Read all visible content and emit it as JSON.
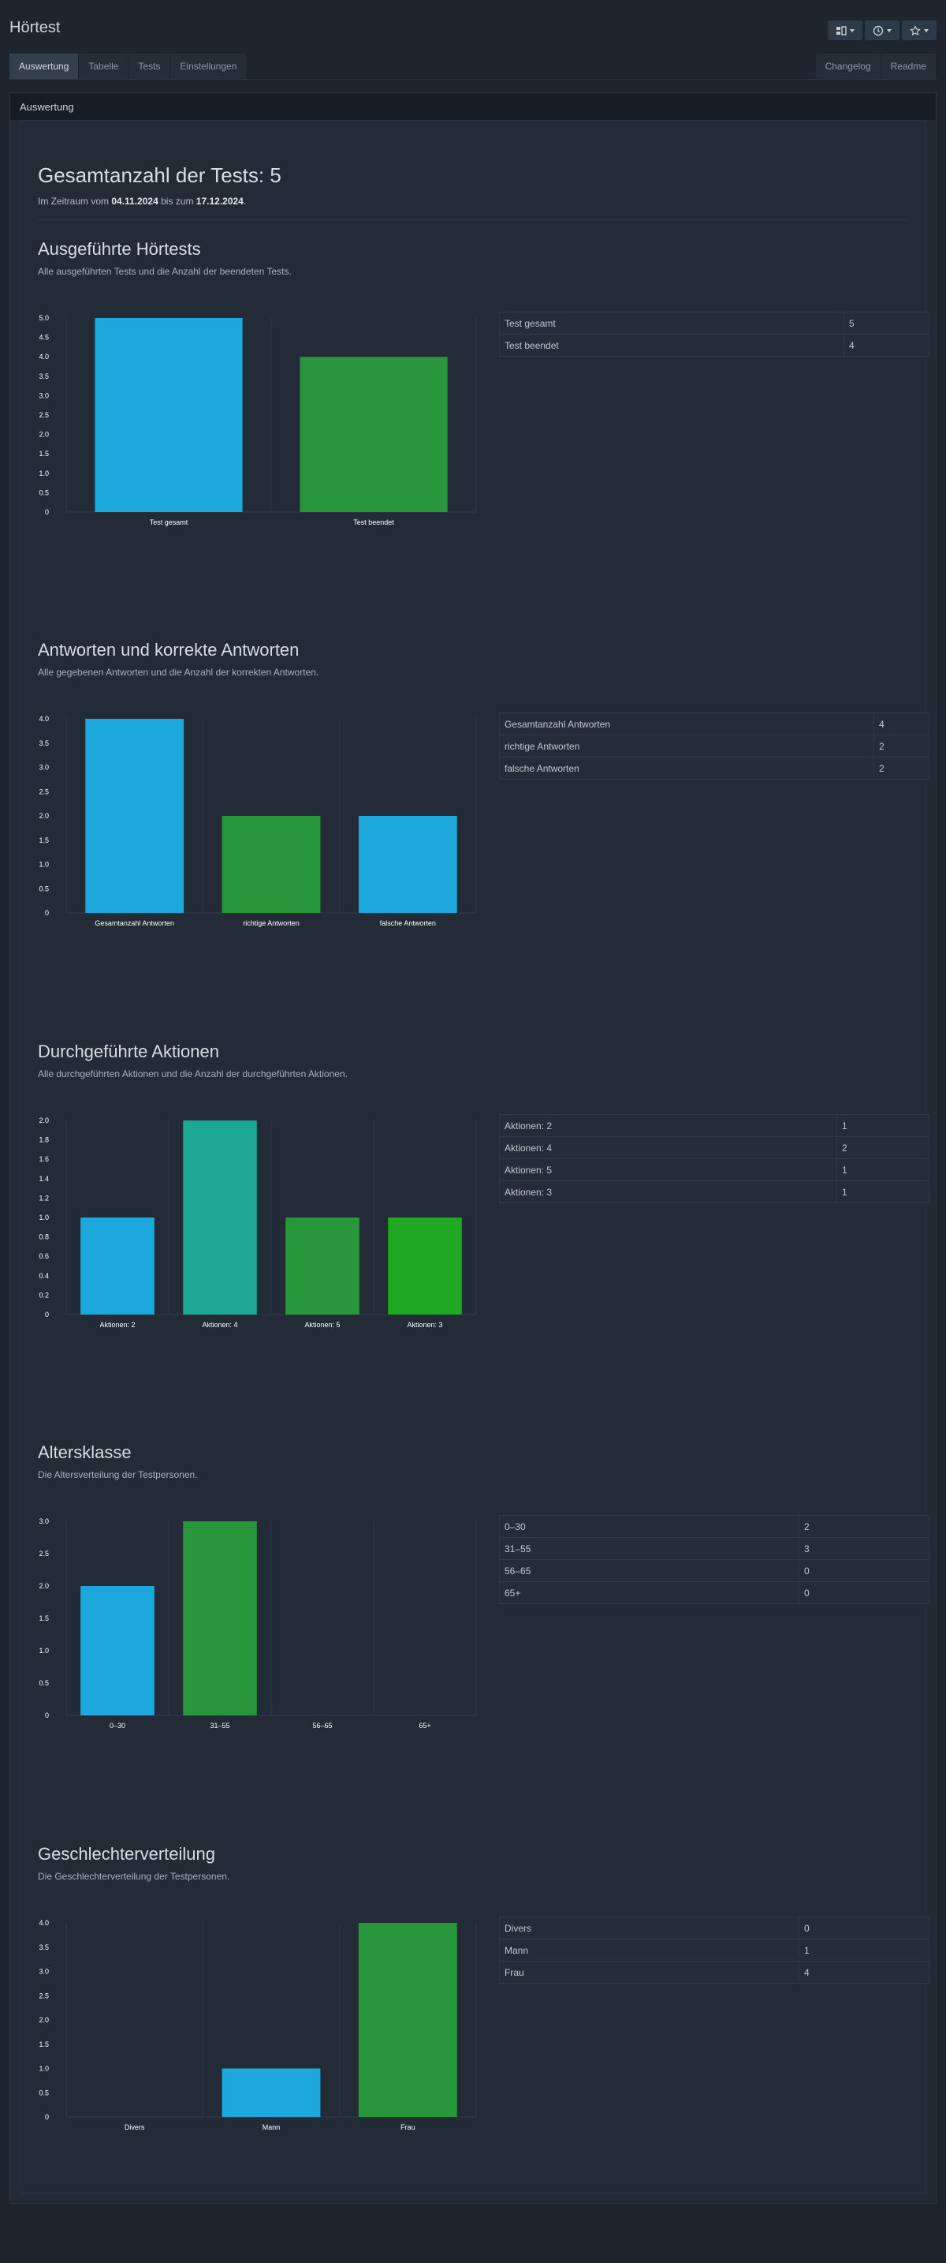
{
  "app": {
    "title": "Hörtest"
  },
  "tabs": [
    {
      "label": "Auswertung",
      "active": true
    },
    {
      "label": "Tabelle",
      "active": false
    },
    {
      "label": "Tests",
      "active": false
    },
    {
      "label": "Einstellungen",
      "active": false
    }
  ],
  "tabs_right": [
    {
      "label": "Changelog"
    },
    {
      "label": "Readme"
    }
  ],
  "toolbar": {
    "icons": [
      "layout-icon",
      "clock-icon",
      "star-icon"
    ]
  },
  "panel": {
    "title": "Auswertung"
  },
  "summary": {
    "heading": "Gesamtanzahl der Tests: 5",
    "period_prefix": "Im Zeitraum vom",
    "date_from": "04.11.2024",
    "period_mid": "bis zum",
    "date_to": "17.12.2024",
    "period_suffix": "."
  },
  "colors": {
    "blue": "#1ca8dd",
    "green": "#28963a",
    "teal": "#1ca894",
    "lime": "#1fa822",
    "grid": "#2f3845"
  },
  "sections": [
    {
      "title": "Ausgeführte Hörtests",
      "description": "Alle ausgeführten Tests und die Anzahl der beendeten Tests.",
      "table": [
        [
          "Test gesamt",
          "5"
        ],
        [
          "Test beendet",
          "4"
        ]
      ]
    },
    {
      "title": "Antworten und korrekte Antworten",
      "description": "Alle gegebenen Antworten und die Anzahl der korrekten Antworten.",
      "table": [
        [
          "Gesamtanzahl Antworten",
          "4"
        ],
        [
          "richtige Antworten",
          "2"
        ],
        [
          "falsche Antworten",
          "2"
        ]
      ]
    },
    {
      "title": "Durchgeführte Aktionen",
      "description": "Alle durchgeführten Aktionen und die Anzahl der durchgeführten Aktionen.",
      "table": [
        [
          "Aktionen: 2",
          "1"
        ],
        [
          "Aktionen: 4",
          "2"
        ],
        [
          "Aktionen: 5",
          "1"
        ],
        [
          "Aktionen: 3",
          "1"
        ]
      ]
    },
    {
      "title": "Altersklasse",
      "description": "Die Altersverteilung der Testpersonen.",
      "table": [
        [
          "0–30",
          "2"
        ],
        [
          "31–55",
          "3"
        ],
        [
          "56–65",
          "0"
        ],
        [
          "65+",
          "0"
        ]
      ]
    },
    {
      "title": "Geschlechterverteilung",
      "description": "Die Geschlechterverteilung der Testpersonen.",
      "table": [
        [
          "Divers",
          "0"
        ],
        [
          "Mann",
          "1"
        ],
        [
          "Frau",
          "4"
        ]
      ]
    }
  ],
  "chart_data": [
    {
      "type": "bar",
      "categories": [
        "Test gesamt",
        "Test beendet"
      ],
      "values": [
        5,
        4
      ],
      "colors": [
        "#1ca8dd",
        "#28963a"
      ],
      "ylim": [
        0,
        5
      ],
      "ystep": 0.5,
      "decimals": 1,
      "yticks_text": [
        "0",
        "0.5",
        "1.0",
        "1.5",
        "2.0",
        "2.5",
        "3.0",
        "3.5",
        "4.0",
        "4.5",
        "5.0"
      ]
    },
    {
      "type": "bar",
      "categories": [
        "Gesamtanzahl Antworten",
        "richtige Antworten",
        "falsche Antworten"
      ],
      "values": [
        4,
        2,
        2
      ],
      "colors": [
        "#1ca8dd",
        "#28963a",
        "#1ca8dd"
      ],
      "ylim": [
        0,
        4
      ],
      "ystep": 0.5,
      "decimals": 1,
      "yticks_text": [
        "0",
        "0.5",
        "1.0",
        "1.5",
        "2.0",
        "2.5",
        "3.0",
        "3.5",
        "4.0"
      ]
    },
    {
      "type": "bar",
      "categories": [
        "Aktionen: 2",
        "Aktionen: 4",
        "Aktionen: 5",
        "Aktionen: 3"
      ],
      "values": [
        1,
        2,
        1,
        1
      ],
      "colors": [
        "#1ca8dd",
        "#1ca894",
        "#28963a",
        "#1fa822"
      ],
      "ylim": [
        0,
        2
      ],
      "ystep": 0.2,
      "decimals": 1,
      "yticks_text": [
        "0",
        "0.2",
        "0.4",
        "0.6",
        "0.8",
        "1.0",
        "1.2",
        "1.4",
        "1.6",
        "1.8",
        "2.0"
      ]
    },
    {
      "type": "bar",
      "categories": [
        "0–30",
        "31–55",
        "56–65",
        "65+"
      ],
      "values": [
        2,
        3,
        0,
        0
      ],
      "colors": [
        "#1ca8dd",
        "#28963a",
        "#1ca894",
        "#1fa822"
      ],
      "ylim": [
        0,
        3
      ],
      "ystep": 0.5,
      "decimals": 1,
      "yticks_text": [
        "0",
        "0.5",
        "1.0",
        "1.5",
        "2.0",
        "2.5",
        "3.0"
      ]
    },
    {
      "type": "bar",
      "categories": [
        "Divers",
        "Mann",
        "Frau"
      ],
      "values": [
        0,
        1,
        4
      ],
      "colors": [
        "#1ca8dd",
        "#1ca8dd",
        "#28963a"
      ],
      "ylim": [
        0,
        4
      ],
      "ystep": 0.5,
      "decimals": 1,
      "yticks_text": [
        "0",
        "0.5",
        "1.0",
        "1.5",
        "2.0",
        "2.5",
        "3.0",
        "3.5",
        "4.0"
      ]
    }
  ]
}
